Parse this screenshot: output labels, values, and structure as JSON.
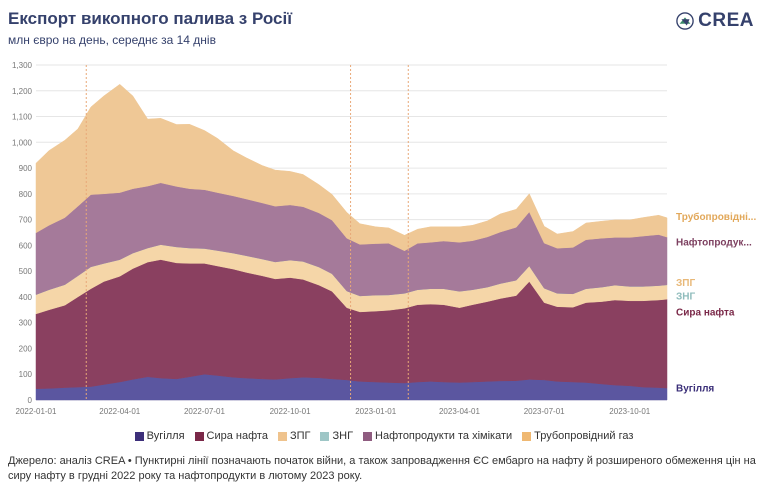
{
  "header": {
    "title": "Експорт викопного палива з Росії",
    "subtitle": "млн євро на день, середнє за 14 днів",
    "logo_text": "CREA"
  },
  "colors": {
    "coal": "#5b56a0",
    "crude": "#8a4060",
    "lng": "#f5d6a8",
    "lng_bg": "#f0d2a8",
    "pipeline_lng": "#9ec6c6",
    "oil_products": "#a57a9a",
    "pipeline_gas": "#efc896",
    "grid": "#e6e6e6",
    "event_line": "#e8a878",
    "title": "#35416c"
  },
  "chart_data": {
    "type": "area",
    "stacked": true,
    "x_dates": [
      "2022-01-01",
      "2022-01-15",
      "2022-02-01",
      "2022-02-15",
      "2022-03-01",
      "2022-03-15",
      "2022-04-01",
      "2022-04-15",
      "2022-05-01",
      "2022-05-15",
      "2022-06-01",
      "2022-06-15",
      "2022-07-01",
      "2022-07-15",
      "2022-08-01",
      "2022-08-15",
      "2022-09-01",
      "2022-09-15",
      "2022-10-01",
      "2022-10-15",
      "2022-11-01",
      "2022-11-15",
      "2022-12-01",
      "2022-12-15",
      "2023-01-01",
      "2023-01-15",
      "2023-02-01",
      "2023-02-15",
      "2023-03-01",
      "2023-03-15",
      "2023-04-01",
      "2023-04-15",
      "2023-05-01",
      "2023-05-15",
      "2023-06-01",
      "2023-06-15",
      "2023-07-01",
      "2023-07-15",
      "2023-08-01",
      "2023-08-15",
      "2023-09-01",
      "2023-09-15",
      "2023-10-01",
      "2023-10-15",
      "2023-11-01",
      "2023-11-10"
    ],
    "series": [
      {
        "name": "Вугілля",
        "key": "coal",
        "values": [
          44,
          45,
          48,
          50,
          52,
          60,
          70,
          80,
          90,
          85,
          82,
          90,
          100,
          95,
          88,
          85,
          82,
          80,
          85,
          88,
          86,
          82,
          78,
          72,
          70,
          68,
          66,
          70,
          72,
          70,
          68,
          70,
          72,
          74,
          75,
          80,
          78,
          72,
          70,
          68,
          62,
          58,
          55,
          50,
          48,
          46
        ]
      },
      {
        "name": "Сира нафта",
        "key": "crude",
        "values": [
          290,
          305,
          320,
          350,
          380,
          400,
          410,
          430,
          445,
          460,
          450,
          440,
          430,
          425,
          420,
          410,
          400,
          390,
          390,
          380,
          360,
          340,
          280,
          270,
          275,
          280,
          290,
          300,
          300,
          300,
          290,
          300,
          310,
          320,
          330,
          380,
          300,
          290,
          290,
          310,
          320,
          330,
          330,
          335,
          340,
          345
        ]
      },
      {
        "name": "ЗПГ",
        "key": "lng",
        "values": [
          75,
          78,
          80,
          82,
          85,
          70,
          65,
          60,
          55,
          58,
          62,
          60,
          58,
          60,
          62,
          65,
          65,
          66,
          68,
          70,
          70,
          68,
          65,
          62,
          62,
          60,
          58,
          58,
          60,
          62,
          64,
          58,
          56,
          58,
          60,
          60,
          56,
          52,
          52,
          54,
          56,
          58,
          56,
          56,
          56,
          56
        ]
      },
      {
        "name": "ЗНГ",
        "key": "pipeline_lng",
        "values": [
          0,
          0,
          0,
          0,
          0,
          0,
          0,
          0,
          0,
          0,
          0,
          0,
          0,
          0,
          0,
          0,
          0,
          0,
          0,
          0,
          0,
          0,
          0,
          0,
          0,
          0,
          0,
          0,
          0,
          0,
          0,
          0,
          0,
          0,
          0,
          0,
          0,
          0,
          0,
          0,
          0,
          0,
          0,
          0,
          0,
          0
        ]
      },
      {
        "name": "Нафтопродукти та хімікати",
        "key": "oil_products",
        "values": [
          240,
          250,
          260,
          270,
          280,
          270,
          260,
          250,
          240,
          240,
          235,
          230,
          228,
          225,
          222,
          220,
          218,
          216,
          214,
          212,
          210,
          208,
          205,
          200,
          200,
          200,
          165,
          180,
          180,
          185,
          190,
          190,
          195,
          200,
          205,
          210,
          175,
          175,
          180,
          190,
          190,
          185,
          190,
          195,
          198,
          185
        ]
      },
      {
        "name": "Трубопровідний газ",
        "key": "pipeline_gas",
        "values": [
          270,
          290,
          300,
          300,
          340,
          380,
          420,
          360,
          260,
          250,
          240,
          250,
          230,
          210,
          175,
          160,
          145,
          140,
          130,
          125,
          110,
          100,
          100,
          80,
          65,
          60,
          60,
          55,
          60,
          55,
          60,
          60,
          62,
          70,
          70,
          70,
          65,
          55,
          62,
          65,
          66,
          68,
          68,
          72,
          75,
          75
        ]
      }
    ],
    "y_ticks": [
      "0",
      "100",
      "200",
      "300",
      "400",
      "500",
      "600",
      "700",
      "800",
      "900",
      "1,000",
      "1,100",
      "1,200",
      "1,300"
    ],
    "x_ticks": [
      "2022-01-01",
      "2022-04-01",
      "2022-07-01",
      "2022-10-01",
      "2023-01-01",
      "2023-04-01",
      "2023-07-01",
      "2023-10-01"
    ],
    "ylim": [
      0,
      1300
    ],
    "xlim": [
      "2022-01-01",
      "2023-11-10"
    ],
    "event_lines": [
      "2022-02-24",
      "2022-12-05",
      "2023-02-05"
    ],
    "end_labels": [
      {
        "text": "Трубопровідні...",
        "key": "pipeline_gas",
        "y": 715,
        "color": "#e2a85a"
      },
      {
        "text": "Нафтопродук...",
        "key": "oil_products",
        "y": 615,
        "color": "#7d4060"
      },
      {
        "text": "ЗПГ",
        "key": "lng",
        "y": 458,
        "color": "#e8b878"
      },
      {
        "text": "ЗНГ",
        "key": "pipeline_lng",
        "y": 405,
        "color": "#8fbcbc"
      },
      {
        "text": "Сира нафта",
        "key": "crude",
        "y": 343,
        "color": "#7a2848"
      },
      {
        "text": "Вугілля",
        "key": "coal",
        "y": 48,
        "color": "#3a2e78"
      }
    ]
  },
  "legend": {
    "items": [
      {
        "label": "Вугілля",
        "color": "#3d2f7a"
      },
      {
        "label": "Сира нафта",
        "color": "#7a2848"
      },
      {
        "label": "ЗПГ",
        "color": "#efc38d"
      },
      {
        "label": "ЗНГ",
        "color": "#9ec6c6"
      },
      {
        "label": "Нафтопродукти та хімікати",
        "color": "#8f5c80"
      },
      {
        "label": "Трубопровідний газ",
        "color": "#efb872"
      }
    ]
  },
  "source": "Джерело: аналіз CREA • Пунктирні лінії позначають початок війни, а також запровадження ЄС ембарго на нафту й розширеного обмеження цін на сиру нафту в грудні 2022 року та нафтопродукти в лютому 2023 року."
}
